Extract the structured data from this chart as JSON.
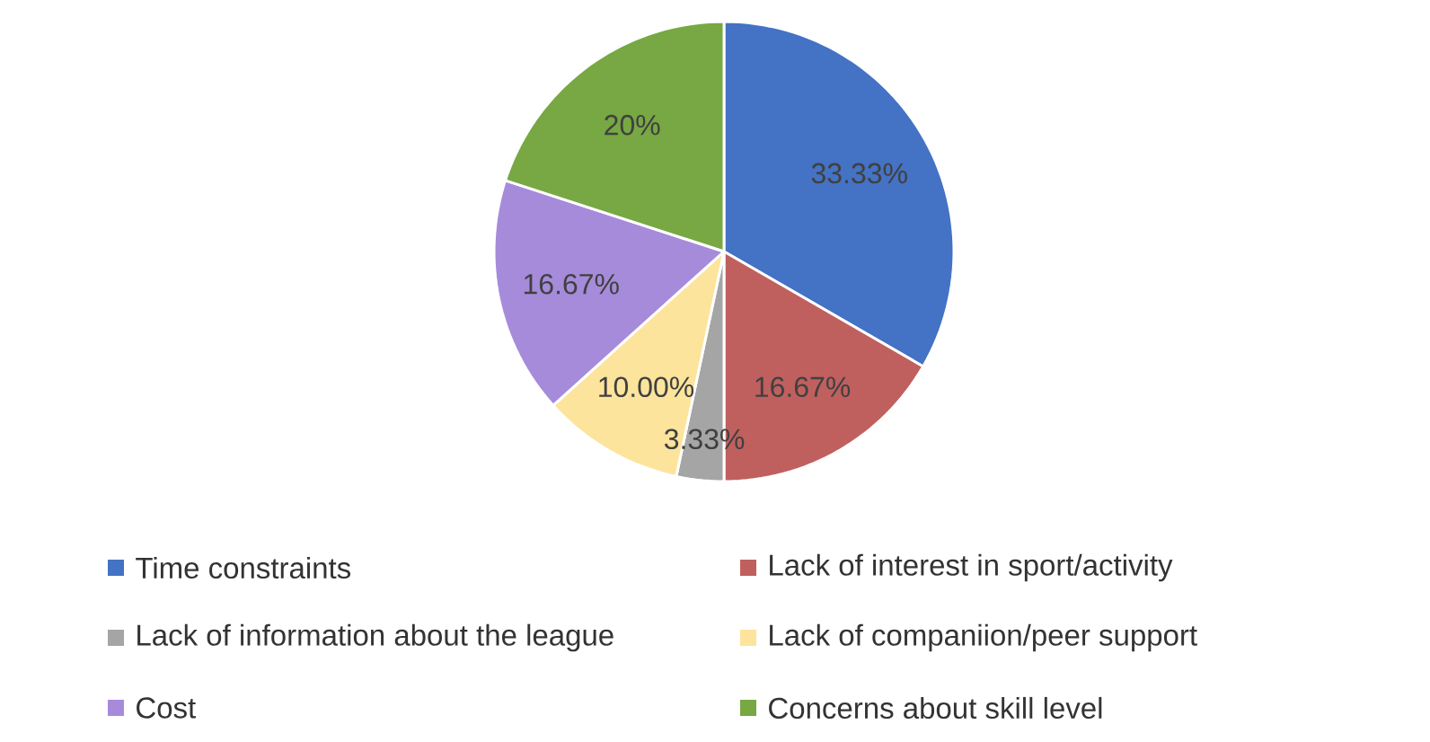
{
  "chart_data": {
    "type": "pie",
    "categories": [
      "Time constraints",
      "Lack of interest in sport/activity",
      "Lack of information about the league",
      "Lack of companiion/peer support",
      "Cost",
      "Concerns about skill level"
    ],
    "values": [
      33.33,
      16.67,
      3.33,
      10.0,
      16.67,
      20
    ],
    "value_labels": [
      "33.33%",
      "16.67%",
      "3.33%",
      "10.00%",
      "16.67%",
      "20%"
    ],
    "colors": [
      "#4472c4",
      "#c0605e",
      "#a5a5a5",
      "#fce49c",
      "#a68bdb",
      "#77a843"
    ],
    "legend": "bottom"
  }
}
